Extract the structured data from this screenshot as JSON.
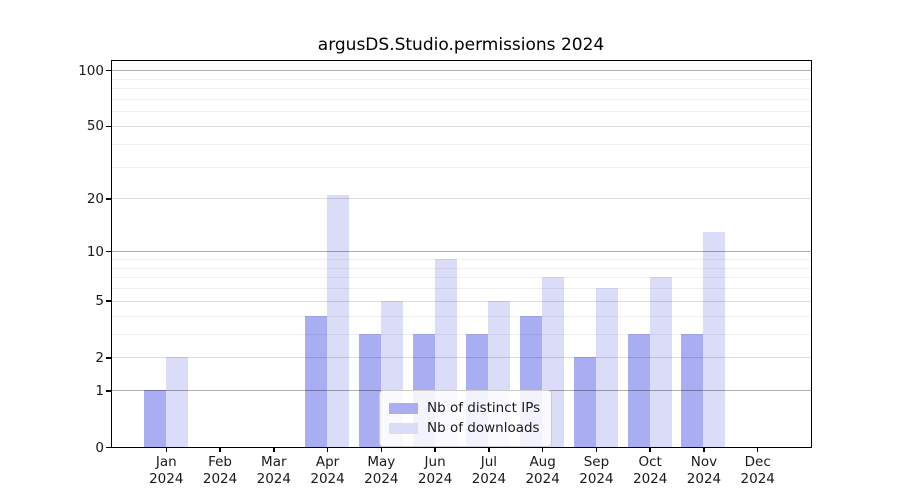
{
  "chart_data": {
    "type": "bar",
    "title": "argusDS.Studio.permissions 2024",
    "categories": [
      {
        "month": "Jan",
        "year": "2024"
      },
      {
        "month": "Feb",
        "year": "2024"
      },
      {
        "month": "Mar",
        "year": "2024"
      },
      {
        "month": "Apr",
        "year": "2024"
      },
      {
        "month": "May",
        "year": "2024"
      },
      {
        "month": "Jun",
        "year": "2024"
      },
      {
        "month": "Jul",
        "year": "2024"
      },
      {
        "month": "Aug",
        "year": "2024"
      },
      {
        "month": "Sep",
        "year": "2024"
      },
      {
        "month": "Oct",
        "year": "2024"
      },
      {
        "month": "Nov",
        "year": "2024"
      },
      {
        "month": "Dec",
        "year": "2024"
      }
    ],
    "series": [
      {
        "name": "Nb of distinct IPs",
        "color": "#a9adf1",
        "values": [
          1,
          0,
          0,
          4,
          3,
          3,
          3,
          4,
          2,
          3,
          3,
          0
        ]
      },
      {
        "name": "Nb of downloads",
        "color": "#dadcf8",
        "values": [
          2,
          0,
          0,
          21,
          5,
          9,
          5,
          7,
          6,
          7,
          13,
          0
        ]
      }
    ],
    "yscale": "log1p",
    "ylim": [
      0,
      112
    ],
    "yticks": [
      0,
      1,
      2,
      5,
      10,
      20,
      50,
      100
    ],
    "yticks_decade": [
      1,
      10,
      100
    ],
    "yticks_minor": [
      3,
      4,
      6,
      7,
      8,
      9,
      30,
      40,
      60,
      70,
      80,
      90
    ],
    "grid": "on",
    "legend_position": "lower center",
    "xlabel": "",
    "ylabel": ""
  }
}
